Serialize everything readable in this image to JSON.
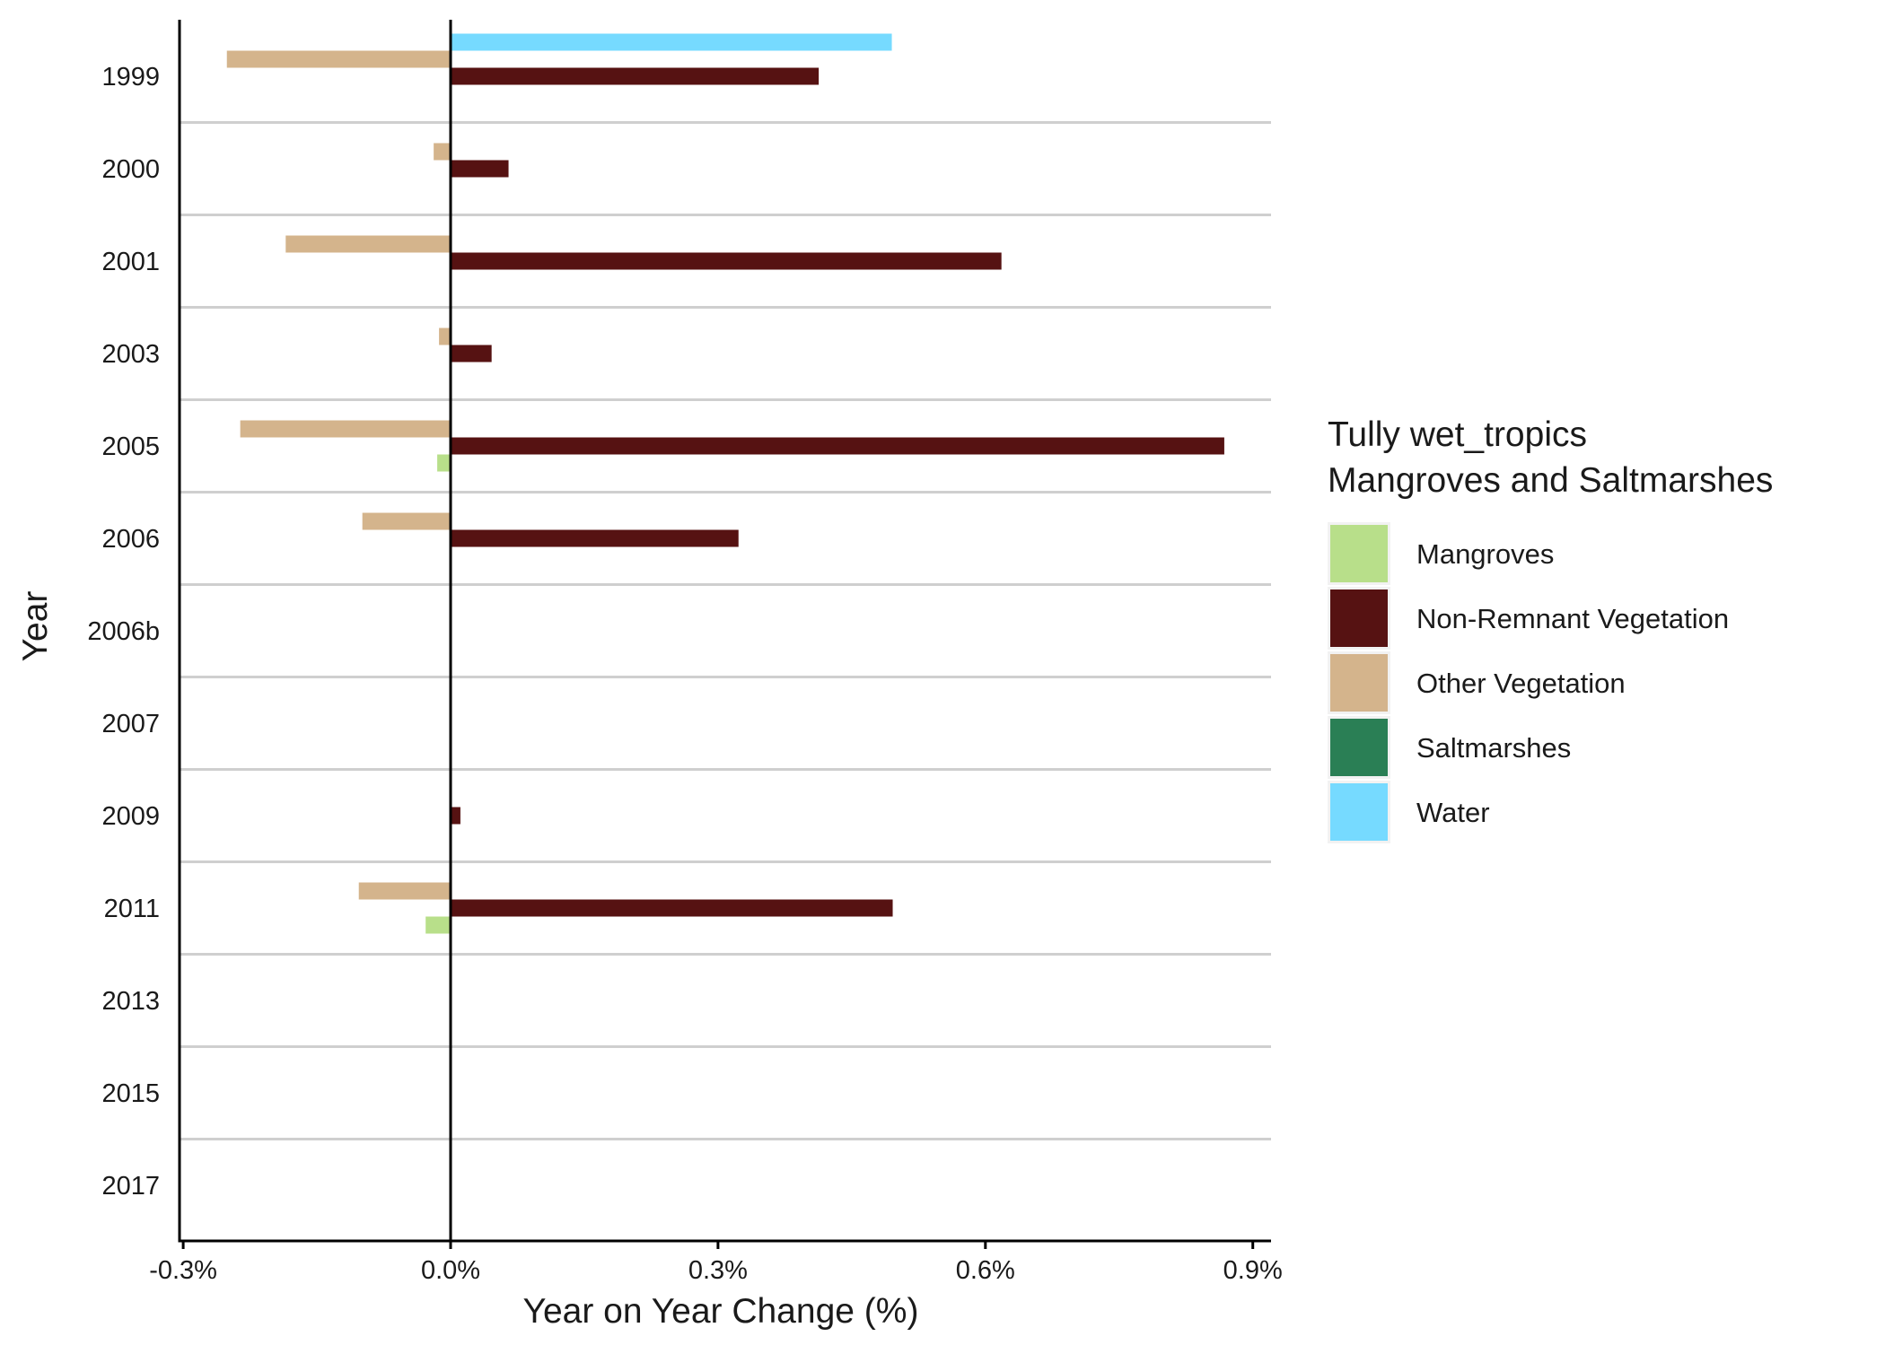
{
  "chart_data": {
    "type": "bar",
    "orientation": "horizontal",
    "title": "",
    "xlabel": "Year on Year Change (%)",
    "ylabel": "Year",
    "xlim": [
      -0.3,
      0.92
    ],
    "xticks": [
      {
        "value": -0.3,
        "label": "-0.3%"
      },
      {
        "value": 0.0,
        "label": "0.0%"
      },
      {
        "value": 0.3,
        "label": "0.3%"
      },
      {
        "value": 0.6,
        "label": "0.6%"
      },
      {
        "value": 0.9,
        "label": "0.9%"
      }
    ],
    "categories": [
      "1999",
      "2000",
      "2001",
      "2003",
      "2005",
      "2006",
      "2006b",
      "2007",
      "2009",
      "2011",
      "2013",
      "2015",
      "2017"
    ],
    "series": [
      {
        "name": "Mangroves",
        "color": "#B8DF8A",
        "values": [
          0,
          0,
          0,
          0,
          -0.015,
          0,
          0,
          0,
          0,
          -0.028,
          0,
          0,
          0
        ]
      },
      {
        "name": "Non-Remnant Vegetation",
        "color": "#561212",
        "values": [
          0.413,
          0.065,
          0.618,
          0.046,
          0.868,
          0.323,
          0,
          0,
          0.011,
          0.496,
          0,
          0,
          0
        ]
      },
      {
        "name": "Other Vegetation",
        "color": "#D4B48C",
        "values": [
          -0.251,
          -0.019,
          -0.185,
          -0.013,
          -0.236,
          -0.099,
          0,
          0,
          0,
          -0.103,
          0,
          0,
          0
        ]
      },
      {
        "name": "Saltmarshes",
        "color": "#2A7F55",
        "values": [
          0,
          0,
          0,
          0,
          0,
          0,
          0,
          0,
          0,
          0,
          0,
          0,
          0
        ]
      },
      {
        "name": "Water",
        "color": "#76DAFF",
        "values": [
          0.495,
          0,
          0,
          0,
          0,
          0,
          0,
          0,
          0,
          0,
          0,
          0,
          0
        ]
      }
    ],
    "grid": {
      "horizontal_separators": true,
      "vertical": false
    },
    "legend": {
      "position": "right",
      "title_lines": [
        "Tully wet_tropics",
        "Mangroves and Saltmarshes"
      ]
    }
  }
}
